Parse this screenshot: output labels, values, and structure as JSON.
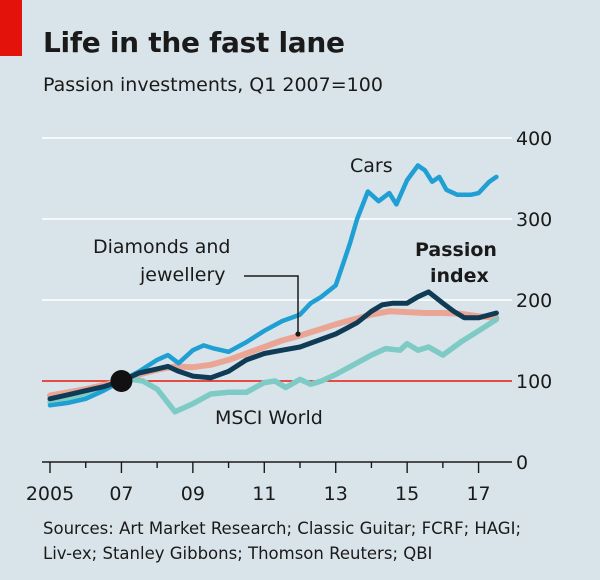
{
  "title": "Life in the fast lane",
  "subtitle": "Passion investments, Q1 2007=100",
  "sources": [
    "Sources: Art Market Research; Classic Guitar; FCRF; HAGI;",
    "Liv-ex; Stanley Gibbons; Thomson Reuters; QBI"
  ],
  "colors": {
    "cars": "#1f9fd4",
    "passion_index": "#0f3b54",
    "diamonds_jewellery": "#eba595",
    "msci_world": "#7ecbc6",
    "baseline": "#e3120b",
    "grid": "#ffffff",
    "brand": "#e3120b"
  },
  "chart_data": {
    "type": "line",
    "title": "Life in the fast lane",
    "subtitle": "Passion investments, Q1 2007=100",
    "xlabel": "",
    "ylabel": "",
    "xlim": [
      2005,
      2017.6
    ],
    "ylim": [
      0,
      400
    ],
    "y_ticks": [
      0,
      100,
      200,
      300,
      400
    ],
    "x_ticks": [
      {
        "value": 2005,
        "label": "2005"
      },
      {
        "value": 2007,
        "label": "07"
      },
      {
        "value": 2009,
        "label": "09"
      },
      {
        "value": 2011,
        "label": "11"
      },
      {
        "value": 2013,
        "label": "13"
      },
      {
        "value": 2015,
        "label": "15"
      },
      {
        "value": 2017,
        "label": "17"
      }
    ],
    "reference_line": {
      "value": 100,
      "label": "Q1 2007=100"
    },
    "base_point": {
      "x": 2007.0,
      "y": 100
    },
    "series": [
      {
        "name": "Diamonds and jewellery",
        "key": "diamonds_jewellery",
        "x": [
          2005.0,
          2005.5,
          2006.0,
          2006.5,
          2007.0,
          2007.5,
          2008.0,
          2008.5,
          2009.0,
          2009.5,
          2010.0,
          2010.5,
          2011.0,
          2011.5,
          2012.0,
          2012.5,
          2013.0,
          2013.5,
          2014.0,
          2014.5,
          2015.0,
          2015.5,
          2016.0,
          2016.5,
          2017.0,
          2017.5
        ],
        "values": [
          82,
          86,
          90,
          95,
          100,
          108,
          114,
          118,
          117,
          120,
          126,
          134,
          142,
          150,
          156,
          163,
          170,
          176,
          182,
          186,
          185,
          184,
          184,
          183,
          180,
          178
        ]
      },
      {
        "name": "MSCI World",
        "key": "msci_world",
        "x": [
          2005.0,
          2005.5,
          2006.0,
          2006.5,
          2007.0,
          2007.3,
          2007.6,
          2008.0,
          2008.5,
          2009.0,
          2009.5,
          2010.0,
          2010.5,
          2011.0,
          2011.3,
          2011.6,
          2012.0,
          2012.3,
          2012.6,
          2013.0,
          2013.5,
          2014.0,
          2014.4,
          2014.8,
          2015.0,
          2015.3,
          2015.6,
          2016.0,
          2016.5,
          2017.0,
          2017.5
        ],
        "values": [
          74,
          78,
          84,
          92,
          100,
          102,
          100,
          90,
          62,
          72,
          84,
          86,
          86,
          98,
          100,
          92,
          102,
          96,
          100,
          108,
          120,
          132,
          140,
          138,
          146,
          138,
          142,
          132,
          148,
          162,
          176
        ]
      },
      {
        "name": "Cars",
        "key": "cars",
        "x": [
          2005.0,
          2005.5,
          2006.0,
          2006.5,
          2007.0,
          2007.5,
          2008.0,
          2008.3,
          2008.6,
          2009.0,
          2009.3,
          2009.6,
          2010.0,
          2010.5,
          2011.0,
          2011.5,
          2012.0,
          2012.3,
          2012.6,
          2013.0,
          2013.2,
          2013.4,
          2013.6,
          2013.9,
          2014.2,
          2014.5,
          2014.7,
          2015.0,
          2015.3,
          2015.5,
          2015.7,
          2015.9,
          2016.1,
          2016.4,
          2016.8,
          2017.0,
          2017.3,
          2017.5
        ],
        "values": [
          70,
          73,
          78,
          88,
          100,
          112,
          126,
          132,
          122,
          138,
          144,
          140,
          136,
          148,
          162,
          174,
          182,
          196,
          204,
          218,
          244,
          270,
          300,
          334,
          322,
          332,
          318,
          348,
          366,
          360,
          346,
          352,
          336,
          330,
          330,
          332,
          346,
          352
        ]
      },
      {
        "name": "Passion index",
        "key": "passion_index",
        "x": [
          2005.0,
          2005.5,
          2006.0,
          2006.5,
          2007.0,
          2007.5,
          2008.0,
          2008.3,
          2008.6,
          2009.0,
          2009.5,
          2010.0,
          2010.5,
          2011.0,
          2011.5,
          2012.0,
          2012.5,
          2013.0,
          2013.3,
          2013.6,
          2014.0,
          2014.3,
          2014.6,
          2015.0,
          2015.3,
          2015.6,
          2016.0,
          2016.3,
          2016.6,
          2017.0,
          2017.5
        ],
        "values": [
          78,
          83,
          88,
          93,
          100,
          110,
          115,
          118,
          112,
          106,
          104,
          112,
          126,
          134,
          138,
          142,
          150,
          158,
          165,
          172,
          186,
          194,
          196,
          196,
          204,
          210,
          196,
          186,
          178,
          178,
          184
        ]
      }
    ],
    "annotations": [
      {
        "text": "Cars",
        "series": "cars"
      },
      {
        "text": "Diamonds and",
        "series": "diamonds_jewellery"
      },
      {
        "text": "jewellery",
        "series": "diamonds_jewellery"
      },
      {
        "text": "Passion",
        "series": "passion_index",
        "bold": true
      },
      {
        "text": "index",
        "series": "passion_index",
        "bold": true
      },
      {
        "text": "MSCI World",
        "series": "msci_world"
      }
    ]
  }
}
